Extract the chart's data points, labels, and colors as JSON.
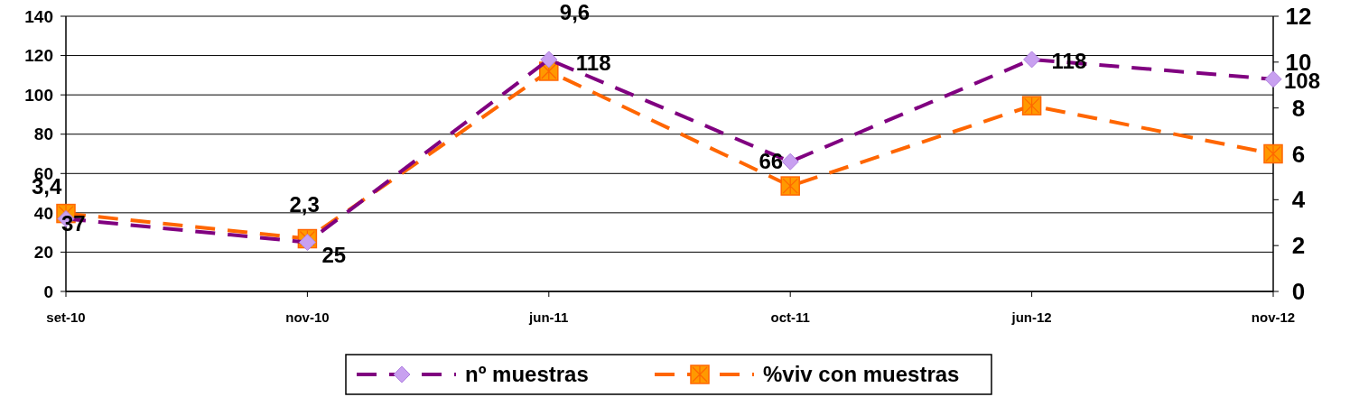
{
  "chart_data": {
    "type": "line",
    "categories": [
      "set-10",
      "nov-10",
      "jun-11",
      "oct-11",
      "jun-12",
      "nov-12"
    ],
    "series": [
      {
        "name": "nº muestras",
        "color": "#800080",
        "marker": "diamond",
        "line_style": "dashed",
        "values": [
          37,
          25,
          118,
          66,
          118,
          108
        ],
        "value_labels": [
          "37",
          "25",
          "118",
          "66",
          "118",
          "108"
        ]
      },
      {
        "name": "%viv con muestras",
        "color": "#ff6600",
        "marker": "square",
        "line_style": "dashed",
        "axis": "y2",
        "values": [
          3.4,
          2.3,
          9.6,
          4.6,
          8.1,
          6.0
        ],
        "value_labels": [
          "3,4",
          "2,3",
          "9,6",
          null,
          null,
          null
        ]
      }
    ],
    "ylim": [
      0,
      140
    ],
    "yticks": [
      0,
      20,
      40,
      60,
      80,
      100,
      120,
      140
    ],
    "y2lim": [
      0,
      12
    ],
    "y2ticks": [
      0,
      2,
      4,
      6,
      8,
      10,
      12
    ],
    "grid": "y",
    "legend": "bottom"
  }
}
